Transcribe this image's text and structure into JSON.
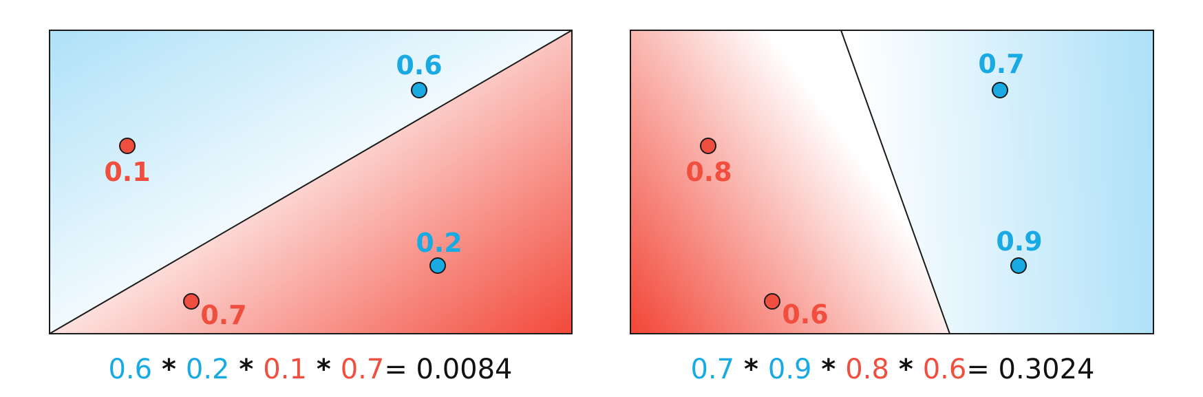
{
  "colors": {
    "blue": "#19a9e3",
    "red": "#f04e3e",
    "light_blue": "#b3e3f9",
    "light_red": "#f24b3b",
    "border": "#1a1a1a",
    "text_black": "#111111"
  },
  "panels": [
    {
      "id": "left",
      "points": [
        {
          "label": "0.6",
          "class": "blue"
        },
        {
          "label": "0.1",
          "class": "red"
        },
        {
          "label": "0.2",
          "class": "blue"
        },
        {
          "label": "0.7",
          "class": "red"
        }
      ],
      "equation": {
        "terms": [
          {
            "text": "0.6",
            "class": "blue"
          },
          {
            "text": " * ",
            "class": "op"
          },
          {
            "text": "0.2",
            "class": "blue"
          },
          {
            "text": " * ",
            "class": "op"
          },
          {
            "text": "0.1",
            "class": "red"
          },
          {
            "text": " * ",
            "class": "op"
          },
          {
            "text": "0.7",
            "class": "red"
          },
          {
            "text": "= 0.0084",
            "class": "result"
          }
        ]
      }
    },
    {
      "id": "right",
      "points": [
        {
          "label": "0.7",
          "class": "blue"
        },
        {
          "label": "0.8",
          "class": "red"
        },
        {
          "label": "0.9",
          "class": "blue"
        },
        {
          "label": "0.6",
          "class": "red"
        }
      ],
      "equation": {
        "terms": [
          {
            "text": "0.7",
            "class": "blue"
          },
          {
            "text": " * ",
            "class": "op"
          },
          {
            "text": "0.9",
            "class": "blue"
          },
          {
            "text": " * ",
            "class": "op"
          },
          {
            "text": "0.8",
            "class": "red"
          },
          {
            "text": " * ",
            "class": "op"
          },
          {
            "text": "0.6",
            "class": "red"
          },
          {
            "text": "= 0.3024",
            "class": "result"
          }
        ]
      }
    }
  ]
}
